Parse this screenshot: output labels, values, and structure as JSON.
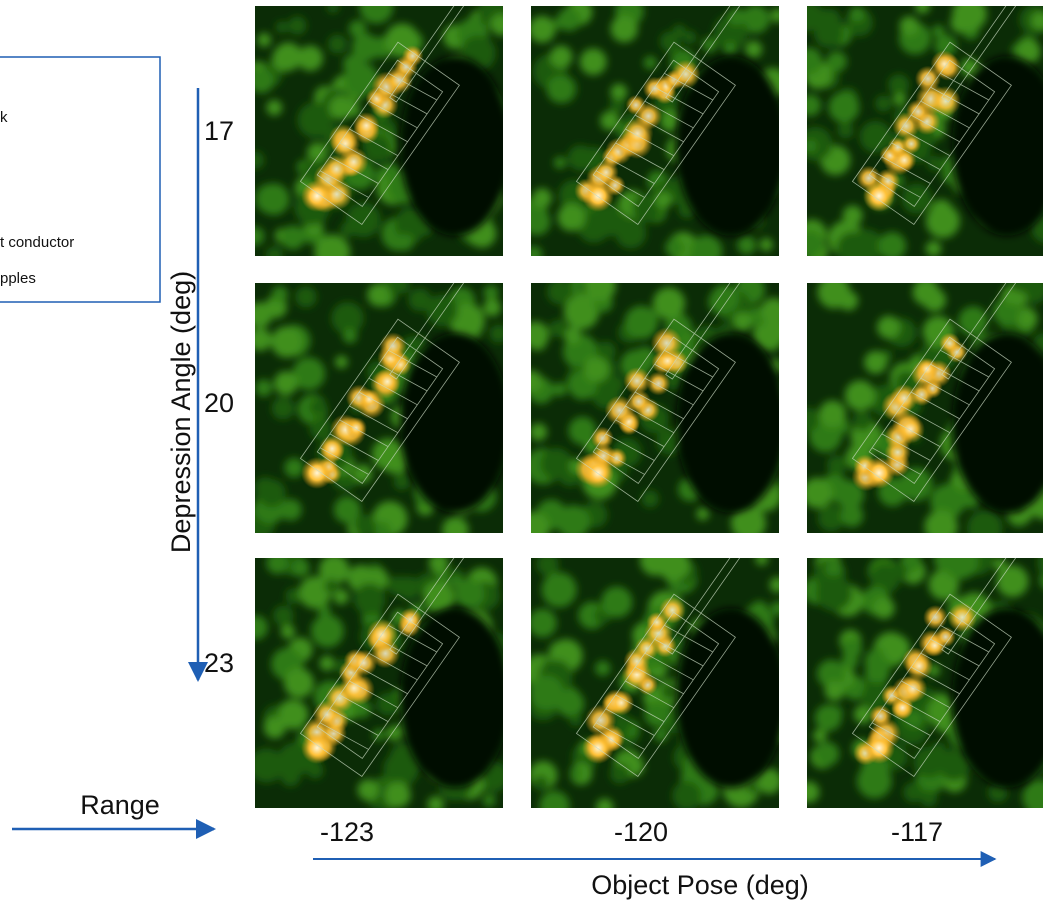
{
  "legend_box": {
    "lines": [
      "k",
      "t conductor",
      "pples"
    ]
  },
  "vertical_axis": {
    "title": "Depression Angle (deg)",
    "labels": [
      "17",
      "20",
      "23"
    ]
  },
  "horizontal_axis": {
    "title": "Object Pose (deg)",
    "labels": [
      "-123",
      "-120",
      "-117"
    ]
  },
  "range_label": "Range"
}
